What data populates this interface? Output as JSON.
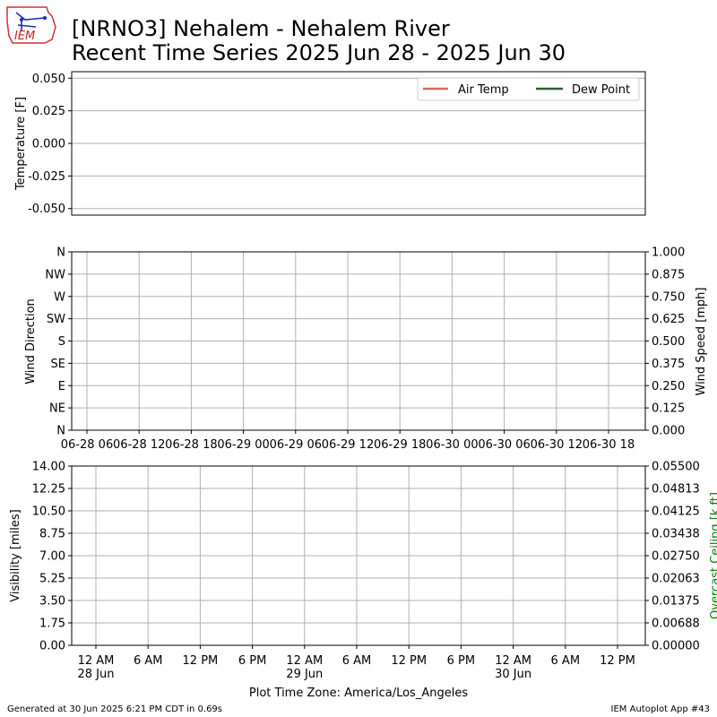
{
  "title": {
    "line1": "[NRNO3] Nehalem - Nehalem River",
    "line2": "Recent Time Series 2025 Jun 28 - 2025 Jun 30"
  },
  "logo": {
    "text": "IEM"
  },
  "footer": {
    "left": "Generated at 30 Jun 2025 6:21 PM CDT in 0.69s",
    "right": "IEM Autoplot App #43",
    "timezone": "Plot Time Zone: America/Los_Angeles"
  },
  "colors": {
    "air_temp": "#e06666",
    "dew_point": "#2e5e2e",
    "grid": "#b0b0b0",
    "ceiling_label": "#008000"
  },
  "chart_data": [
    {
      "type": "line",
      "panel": "temperature",
      "ylabel": "Temperature [F]",
      "ylim": [
        -0.055,
        0.055
      ],
      "yticks": [
        "0.050",
        "0.025",
        "0.000",
        "-0.025",
        "-0.050"
      ],
      "ytick_values": [
        0.05,
        0.025,
        0.0,
        -0.025,
        -0.05
      ],
      "grid": "horizontal",
      "legend_position": "top-right",
      "series": [
        {
          "name": "Air Temp",
          "values": []
        },
        {
          "name": "Dew Point",
          "values": []
        }
      ]
    },
    {
      "type": "scatter",
      "panel": "wind",
      "ylabel": "Wind Direction",
      "y2label": "Wind Speed [mph]",
      "yticks": [
        "N",
        "NW",
        "W",
        "SW",
        "S",
        "SE",
        "E",
        "NE",
        "N"
      ],
      "y2ticks": [
        "1.000",
        "0.875",
        "0.750",
        "0.625",
        "0.500",
        "0.375",
        "0.250",
        "0.125",
        "0.000"
      ],
      "y2lim": [
        0,
        1
      ],
      "xticks": [
        "06-28 06",
        "06-28 12",
        "06-28 18",
        "06-29 00",
        "06-29 06",
        "06-29 12",
        "06-29 18",
        "06-30 00",
        "06-30 06",
        "06-30 12",
        "06-30 18"
      ],
      "grid": "both",
      "series": []
    },
    {
      "type": "line",
      "panel": "visibility",
      "ylabel": "Visibility [miles]",
      "y2label": "Overcast Ceiling [k ft]",
      "ylim": [
        0,
        14
      ],
      "yticks": [
        "14.00",
        "12.25",
        "10.50",
        "8.75",
        "7.00",
        "5.25",
        "3.50",
        "1.75",
        "0.00"
      ],
      "y2lim": [
        0,
        0.055
      ],
      "y2ticks": [
        "0.05500",
        "0.04813",
        "0.04125",
        "0.03438",
        "0.02750",
        "0.02063",
        "0.01375",
        "0.00688",
        "0.00000"
      ],
      "xticks": [
        {
          "time": "12 AM",
          "date": "28 Jun"
        },
        {
          "time": "6 AM",
          "date": ""
        },
        {
          "time": "12 PM",
          "date": ""
        },
        {
          "time": "6 PM",
          "date": ""
        },
        {
          "time": "12 AM",
          "date": "29 Jun"
        },
        {
          "time": "6 AM",
          "date": ""
        },
        {
          "time": "12 PM",
          "date": ""
        },
        {
          "time": "6 PM",
          "date": ""
        },
        {
          "time": "12 AM",
          "date": "30 Jun"
        },
        {
          "time": "6 AM",
          "date": ""
        },
        {
          "time": "12 PM",
          "date": ""
        }
      ],
      "grid": "both",
      "series": []
    }
  ]
}
